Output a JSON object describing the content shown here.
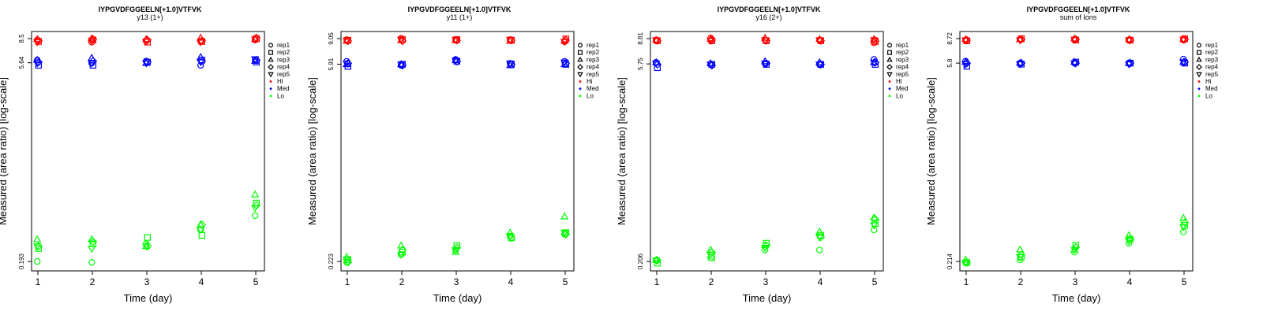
{
  "chart_data": [
    {
      "type": "scatter",
      "title": "IYPGVDFGGEELN[+1.0]VTFVK",
      "subtitle": "y13 (1+)",
      "xlabel": "Time (day)",
      "ylabel": "Measured (area ratio) [log-scale]",
      "xticks": [
        "1",
        "2",
        "3",
        "4",
        "5"
      ],
      "yticks": [
        "0.193",
        "5.64",
        "8.5"
      ],
      "ytick_values": [
        0.193,
        5.64,
        8.5
      ],
      "yscale": "log",
      "legend_position": "right",
      "series": [
        {
          "name": "Hi",
          "color": "#ff0000",
          "values": [
            [
              8.3,
              8.0,
              8.2,
              8.1,
              8.3
            ],
            [
              8.1,
              8.3,
              8.0,
              8.1,
              8.5
            ],
            [
              8.4,
              8.5,
              8.4,
              8.6,
              8.4
            ],
            [
              8.2,
              8.4,
              8.3,
              8.2,
              8.6
            ],
            [
              8.0,
              8.2,
              8.1,
              8.0,
              8.4
            ]
          ]
        },
        {
          "name": "Med",
          "color": "#0000ff",
          "values": [
            [
              5.9,
              5.6,
              5.8,
              5.4,
              5.9
            ],
            [
              5.4,
              5.4,
              5.7,
              5.9,
              5.7
            ],
            [
              5.9,
              6.1,
              5.6,
              6.2,
              5.8
            ],
            [
              5.7,
              5.8,
              5.7,
              5.8,
              5.9
            ],
            [
              5.6,
              5.6,
              5.6,
              5.7,
              6.0
            ]
          ]
        },
        {
          "name": "Lo",
          "color": "#00ff00",
          "values": [
            [
              0.193,
              0.19,
              0.26,
              0.33,
              0.42
            ],
            [
              0.24,
              0.26,
              0.29,
              0.3,
              0.52
            ],
            [
              0.28,
              0.28,
              0.25,
              0.36,
              0.6
            ],
            [
              0.25,
              0.27,
              0.25,
              0.36,
              0.5
            ],
            [
              0.25,
              0.24,
              0.25,
              0.33,
              0.48
            ]
          ]
        }
      ],
      "legend": [
        "rep1",
        "rep2",
        "rep3",
        "rep4",
        "rep5",
        "Hi",
        "Med",
        "Lo"
      ]
    },
    {
      "type": "scatter",
      "title": "IYPGVDFGGEELN[+1.0]VTFVK",
      "subtitle": "y11 (1+)",
      "xlabel": "Time (day)",
      "ylabel": "Measured (area ratio) [log-scale]",
      "xticks": [
        "1",
        "2",
        "3",
        "4",
        "5"
      ],
      "yticks": [
        "0.223",
        "5.91",
        "9.05"
      ],
      "ytick_values": [
        0.223,
        5.91,
        9.05
      ],
      "yscale": "log",
      "legend_position": "right",
      "series": [
        {
          "name": "Hi",
          "color": "#ff0000",
          "values": [
            [
              8.9,
              9.1,
              8.8,
              8.9,
              8.6
            ],
            [
              8.8,
              8.9,
              8.9,
              8.8,
              9.0
            ],
            [
              8.7,
              8.8,
              8.8,
              8.7,
              8.7
            ],
            [
              8.7,
              8.7,
              8.8,
              8.8,
              8.8
            ],
            [
              8.8,
              8.9,
              8.9,
              8.9,
              8.6
            ]
          ]
        },
        {
          "name": "Med",
          "color": "#0000ff",
          "values": [
            [
              6.2,
              5.8,
              6.4,
              6.0,
              6.2
            ],
            [
              5.7,
              5.9,
              6.2,
              5.9,
              5.9
            ],
            [
              5.9,
              5.9,
              6.3,
              5.8,
              5.9
            ],
            [
              6.0,
              5.8,
              6.2,
              5.9,
              6.0
            ],
            [
              6.0,
              5.9,
              6.3,
              6.0,
              6.1
            ]
          ]
        },
        {
          "name": "Lo",
          "color": "#00ff00",
          "values": [
            [
              0.22,
              0.25,
              0.27,
              0.34,
              0.35
            ],
            [
              0.23,
              0.26,
              0.29,
              0.33,
              0.36
            ],
            [
              0.24,
              0.29,
              0.26,
              0.36,
              0.47
            ],
            [
              0.22,
              0.27,
              0.28,
              0.33,
              0.35
            ],
            [
              0.23,
              0.25,
              0.27,
              0.34,
              0.36
            ]
          ]
        }
      ],
      "legend": [
        "rep1",
        "rep2",
        "rep3",
        "rep4",
        "rep5",
        "Hi",
        "Med",
        "Lo"
      ]
    },
    {
      "type": "scatter",
      "title": "IYPGVDFGGEELN[+1.0]VTFVK",
      "subtitle": "y16 (2+)",
      "xlabel": "Time (day)",
      "ylabel": "Measured (area ratio) [log-scale]",
      "xticks": [
        "1",
        "2",
        "3",
        "4",
        "5"
      ],
      "yticks": [
        "0.206",
        "5.75",
        "8.81"
      ],
      "ytick_values": [
        0.206,
        5.75,
        8.81
      ],
      "yscale": "log",
      "legend_position": "right",
      "series": [
        {
          "name": "Hi",
          "color": "#ff0000",
          "values": [
            [
              8.6,
              8.9,
              8.6,
              8.6,
              8.2
            ],
            [
              8.5,
              8.5,
              8.5,
              8.5,
              8.4
            ],
            [
              8.6,
              8.7,
              8.9,
              8.7,
              8.7
            ],
            [
              8.5,
              8.6,
              8.5,
              8.5,
              8.5
            ],
            [
              8.6,
              8.5,
              8.6,
              8.6,
              8.6
            ]
          ]
        },
        {
          "name": "Med",
          "color": "#0000ff",
          "values": [
            [
              5.9,
              5.7,
              5.8,
              5.7,
              6.2
            ],
            [
              5.4,
              5.7,
              5.7,
              5.7,
              5.7
            ],
            [
              5.9,
              5.8,
              6.0,
              5.9,
              5.9
            ],
            [
              5.7,
              5.6,
              5.8,
              5.7,
              5.9
            ],
            [
              5.8,
              5.7,
              5.8,
              5.7,
              5.9
            ]
          ]
        },
        {
          "name": "Lo",
          "color": "#00ff00",
          "values": [
            [
              0.21,
              0.22,
              0.25,
              0.25,
              0.35
            ],
            [
              0.2,
              0.22,
              0.28,
              0.32,
              0.39
            ],
            [
              0.21,
              0.25,
              0.27,
              0.34,
              0.43
            ],
            [
              0.21,
              0.24,
              0.27,
              0.31,
              0.42
            ],
            [
              0.21,
              0.23,
              0.26,
              0.31,
              0.38
            ]
          ]
        }
      ],
      "legend": [
        "rep1",
        "rep2",
        "rep3",
        "rep4",
        "rep5",
        "Hi",
        "Med",
        "Lo"
      ]
    },
    {
      "type": "scatter",
      "title": "IYPGVDFGGEELN[+1.0]VTFVK",
      "subtitle": "sum of Ions",
      "xlabel": "Time (day)",
      "ylabel": "Measured (area ratio) [log-scale]",
      "xticks": [
        "1",
        "2",
        "3",
        "4",
        "5"
      ],
      "yticks": [
        "0.214",
        "5.8",
        "8.72"
      ],
      "ytick_values": [
        0.214,
        5.8,
        8.72
      ],
      "yscale": "log",
      "legend_position": "right",
      "series": [
        {
          "name": "Hi",
          "color": "#ff0000",
          "values": [
            [
              8.5,
              8.6,
              8.6,
              8.5,
              8.5
            ],
            [
              8.4,
              8.7,
              8.5,
              8.5,
              8.7
            ],
            [
              8.6,
              8.6,
              8.7,
              8.6,
              8.6
            ],
            [
              8.5,
              8.6,
              8.6,
              8.5,
              8.6
            ],
            [
              8.5,
              8.5,
              8.6,
              8.5,
              8.6
            ]
          ]
        },
        {
          "name": "Med",
          "color": "#0000ff",
          "values": [
            [
              6.0,
              5.8,
              5.8,
              5.8,
              6.2
            ],
            [
              5.5,
              5.7,
              5.9,
              5.8,
              5.8
            ],
            [
              5.9,
              5.8,
              5.9,
              5.8,
              5.9
            ],
            [
              5.8,
              5.8,
              5.8,
              5.8,
              5.9
            ],
            [
              5.7,
              5.7,
              5.8,
              5.7,
              5.9
            ]
          ]
        },
        {
          "name": "Lo",
          "color": "#00ff00",
          "values": [
            [
              0.21,
              0.22,
              0.25,
              0.29,
              0.35
            ],
            [
              0.21,
              0.23,
              0.28,
              0.31,
              0.39
            ],
            [
              0.22,
              0.26,
              0.26,
              0.33,
              0.44
            ],
            [
              0.21,
              0.24,
              0.27,
              0.31,
              0.41
            ],
            [
              0.21,
              0.23,
              0.26,
              0.3,
              0.38
            ]
          ]
        }
      ],
      "legend": [
        "rep1",
        "rep2",
        "rep3",
        "rep4",
        "rep5",
        "Hi",
        "Med",
        "Lo"
      ]
    }
  ]
}
